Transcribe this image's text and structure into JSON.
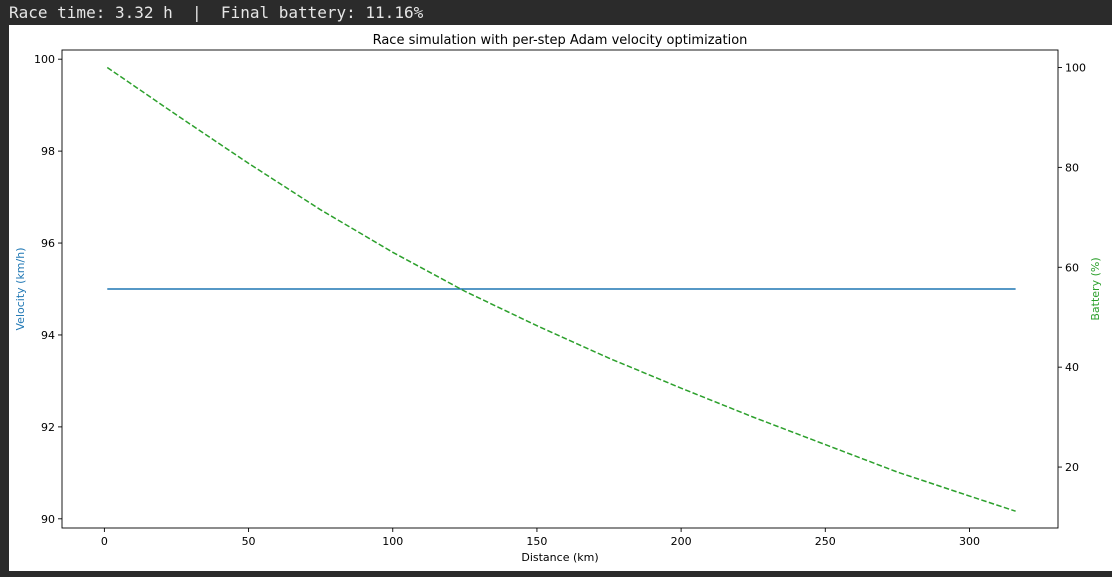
{
  "output": {
    "text": "Race time: 3.32 h  |  Final battery: 11.16%"
  },
  "chart_data": {
    "type": "line",
    "title": "Race simulation with per-step Adam velocity optimization",
    "xlabel": "Distance (km)",
    "ylabel_left": "Velocity (km/h)",
    "ylabel_right": "Battery (%)",
    "xlim": [
      -14.7,
      330.7
    ],
    "ylim_left": [
      89.8,
      100.2
    ],
    "ylim_right": [
      7.8,
      103.5
    ],
    "x_ticks": [
      0,
      50,
      100,
      150,
      200,
      250,
      300
    ],
    "y_left_ticks": [
      90,
      92,
      94,
      96,
      98,
      100
    ],
    "y_right_ticks": [
      20,
      40,
      60,
      80,
      100
    ],
    "grid": false,
    "colors": {
      "velocity": "#1f77b4",
      "battery": "#2ca02c"
    },
    "series": [
      {
        "axis": "left",
        "style": "solid",
        "x": [
          1,
          316
        ],
        "values": [
          95.0,
          95.0
        ]
      },
      {
        "axis": "right",
        "style": "dashed",
        "x": [
          1,
          25,
          50,
          75,
          100,
          125,
          150,
          175,
          200,
          225,
          250,
          275,
          300,
          316
        ],
        "values": [
          100,
          90.5,
          80.8,
          71.5,
          63.0,
          55.2,
          48.3,
          41.8,
          35.8,
          30.0,
          24.5,
          19.0,
          14.2,
          11.16
        ]
      }
    ]
  }
}
